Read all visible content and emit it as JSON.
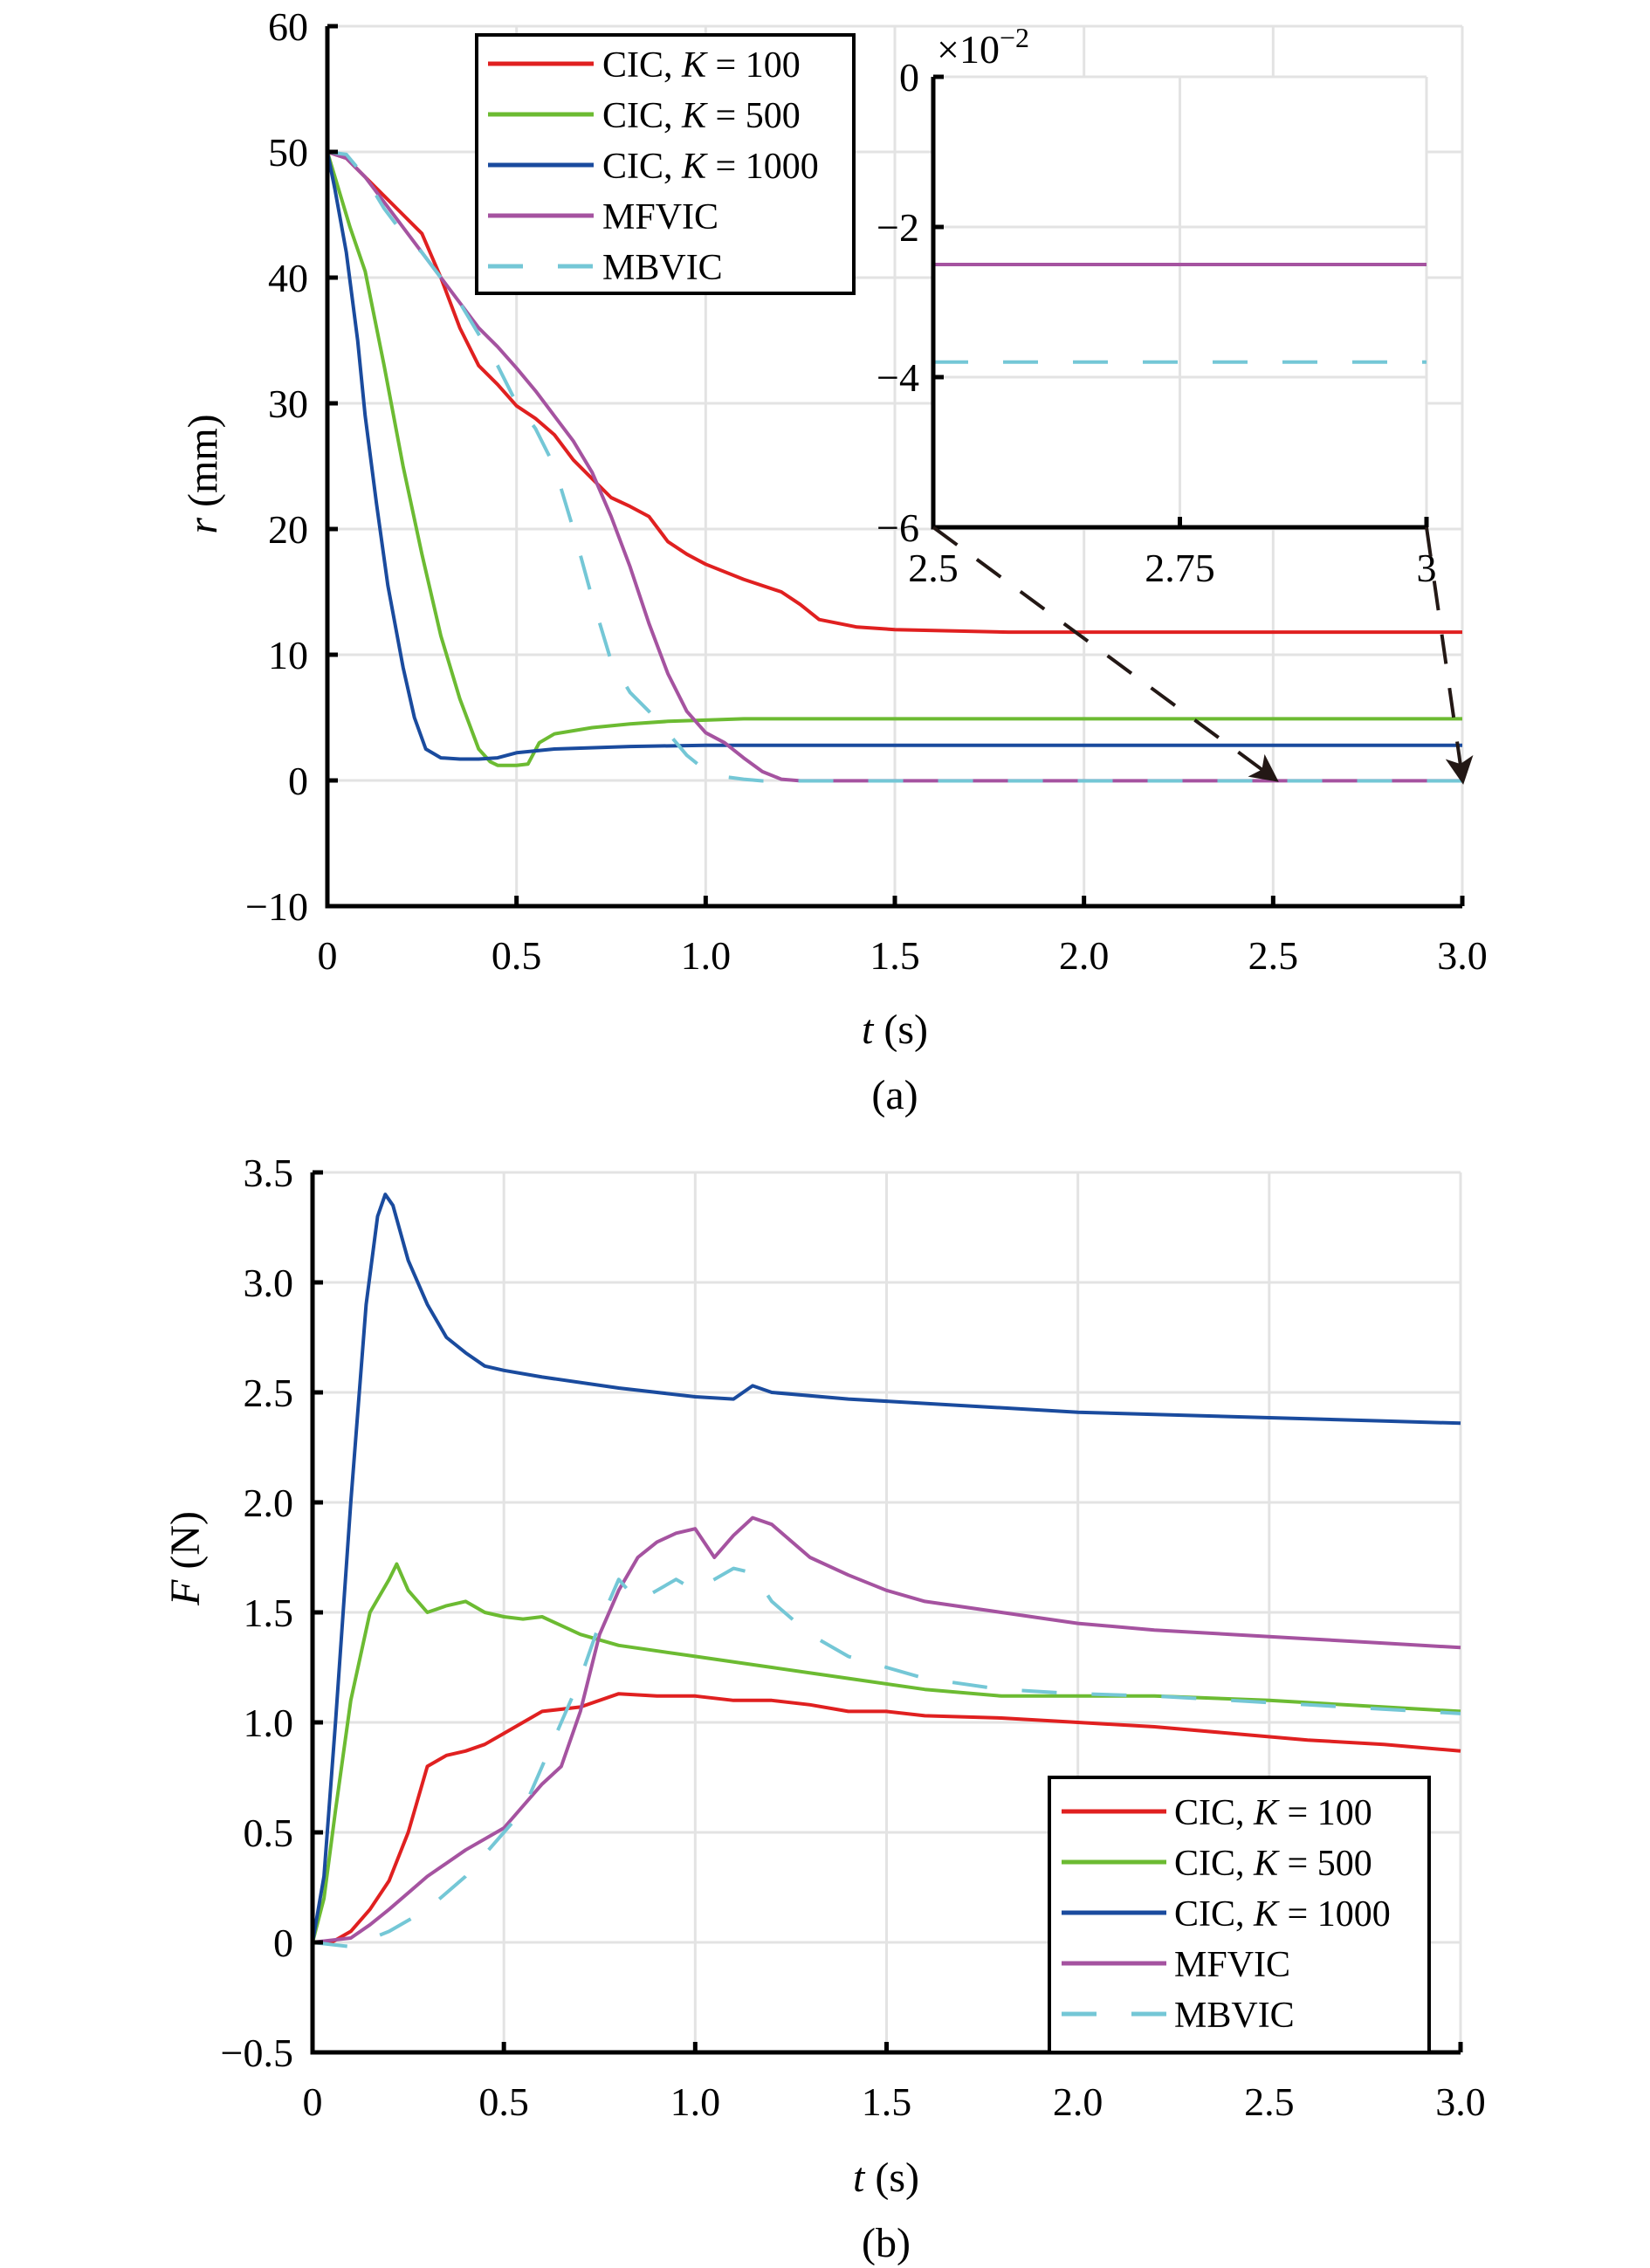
{
  "colors": {
    "cic100": "#e02020",
    "cic500": "#6cbb32",
    "cic1000": "#1a4b9e",
    "mfvic": "#a553a0",
    "mbvic": "#74c7d6",
    "grid": "#e3e3e3"
  },
  "chart_data": [
    {
      "panel": "(a)",
      "type": "line",
      "xlabel_var": "t",
      "xlabel_unit": "(s)",
      "ylabel_var": "r",
      "ylabel_unit": "(mm)",
      "xlim": [
        0,
        3.0
      ],
      "ylim": [
        -10,
        60
      ],
      "xticks": [
        0,
        0.5,
        1.0,
        1.5,
        2.0,
        2.5,
        3.0
      ],
      "xtick_labels": [
        "0",
        "0.5",
        "1.0",
        "1.5",
        "2.0",
        "2.5",
        "3.0"
      ],
      "yticks": [
        -10,
        0,
        10,
        20,
        30,
        40,
        50,
        60
      ],
      "ytick_labels": [
        "−10",
        "0",
        "10",
        "20",
        "30",
        "40",
        "50",
        "60"
      ],
      "grid": true,
      "legend_position": "top-left",
      "series": [
        {
          "name": "CIC, K = 100",
          "label_prefix": "CIC, ",
          "label_k": "K",
          "label_value": " = 100",
          "color_key": "cic100",
          "dash": false,
          "x": [
            0,
            0.05,
            0.1,
            0.15,
            0.2,
            0.25,
            0.3,
            0.35,
            0.4,
            0.45,
            0.5,
            0.55,
            0.6,
            0.65,
            0.7,
            0.75,
            0.8,
            0.85,
            0.9,
            0.95,
            1.0,
            1.1,
            1.2,
            1.25,
            1.3,
            1.4,
            1.5,
            1.8,
            2.0,
            2.5,
            3.0
          ],
          "y": [
            50,
            49.5,
            48,
            46.5,
            45,
            43.5,
            40,
            36,
            33,
            31.5,
            29.8,
            28.8,
            27.5,
            25.5,
            24,
            22.5,
            21.8,
            21,
            19,
            18,
            17.2,
            16,
            15,
            14,
            12.8,
            12.2,
            12,
            11.8,
            11.8,
            11.8,
            11.8
          ]
        },
        {
          "name": "CIC, K = 500",
          "label_prefix": "CIC, ",
          "label_k": "K",
          "label_value": " = 500",
          "color_key": "cic500",
          "dash": false,
          "x": [
            0,
            0.03,
            0.06,
            0.1,
            0.15,
            0.2,
            0.25,
            0.3,
            0.35,
            0.4,
            0.43,
            0.45,
            0.5,
            0.53,
            0.56,
            0.6,
            0.7,
            0.8,
            0.9,
            1.0,
            1.1,
            1.5,
            2.0,
            2.5,
            3.0
          ],
          "y": [
            50,
            47,
            44,
            40.5,
            33,
            25,
            18,
            11.5,
            6.5,
            2.5,
            1.5,
            1.2,
            1.2,
            1.3,
            3,
            3.7,
            4.2,
            4.5,
            4.7,
            4.8,
            4.9,
            4.9,
            4.9,
            4.9,
            4.9
          ]
        },
        {
          "name": "CIC, K = 1000",
          "label_prefix": "CIC, ",
          "label_k": "K",
          "label_value": " = 1000",
          "color_key": "cic1000",
          "dash": false,
          "x": [
            0,
            0.02,
            0.05,
            0.08,
            0.1,
            0.13,
            0.16,
            0.2,
            0.23,
            0.26,
            0.3,
            0.35,
            0.4,
            0.45,
            0.5,
            0.6,
            0.8,
            1.0,
            1.5,
            2.0,
            2.5,
            3.0
          ],
          "y": [
            50,
            47,
            42,
            35,
            29,
            22,
            15.5,
            9,
            5,
            2.5,
            1.8,
            1.7,
            1.7,
            1.8,
            2.2,
            2.5,
            2.7,
            2.8,
            2.8,
            2.8,
            2.8,
            2.8
          ]
        },
        {
          "name": "MFVIC",
          "label_prefix": "MFVIC",
          "label_k": "",
          "label_value": "",
          "color_key": "mfvic",
          "dash": false,
          "x": [
            0,
            0.05,
            0.1,
            0.15,
            0.2,
            0.25,
            0.3,
            0.35,
            0.4,
            0.45,
            0.5,
            0.55,
            0.6,
            0.65,
            0.7,
            0.75,
            0.8,
            0.85,
            0.9,
            0.95,
            1.0,
            1.05,
            1.1,
            1.15,
            1.2,
            1.25,
            1.5,
            2.0,
            2.5,
            3.0
          ],
          "y": [
            50,
            49.5,
            48,
            46,
            44,
            42,
            40,
            38,
            36,
            34.5,
            32.8,
            31,
            29,
            27,
            24.5,
            21,
            17,
            12.5,
            8.5,
            5.5,
            3.8,
            3,
            1.8,
            0.7,
            0.1,
            -0.025,
            -0.025,
            -0.025,
            -0.025,
            -0.025
          ]
        },
        {
          "name": "MBVIC",
          "label_prefix": "MBVIC",
          "label_k": "",
          "label_value": "",
          "color_key": "mbvic",
          "dash": true,
          "x": [
            0,
            0.05,
            0.1,
            0.15,
            0.2,
            0.25,
            0.3,
            0.35,
            0.4,
            0.45,
            0.5,
            0.55,
            0.6,
            0.65,
            0.7,
            0.75,
            0.8,
            0.85,
            0.9,
            0.95,
            1.0,
            1.05,
            1.1,
            1.15,
            1.2,
            1.5,
            2.0,
            2.5,
            3.0
          ],
          "y": [
            50,
            49.8,
            48,
            45.5,
            43.5,
            42,
            40,
            38,
            35.5,
            33,
            30,
            28,
            25,
            20,
            14.5,
            9.5,
            7,
            5.5,
            3.8,
            2,
            0.8,
            0.3,
            0.1,
            -0.038,
            -0.038,
            -0.038,
            -0.038,
            -0.038,
            -0.038
          ]
        }
      ],
      "inset": {
        "xlim": [
          2.5,
          3.0
        ],
        "ylim": [
          -6,
          0
        ],
        "xticks": [
          2.5,
          2.75,
          3.0
        ],
        "xtick_labels": [
          "2.5",
          "2.75",
          "3"
        ],
        "yticks": [
          -6,
          -4,
          -2,
          0
        ],
        "ytick_labels": [
          "−6",
          "−4",
          "−2",
          "0"
        ],
        "scale_label_base": "×10",
        "scale_label_exp": "−2",
        "series": [
          {
            "name": "MFVIC",
            "color_key": "mfvic",
            "dash": false,
            "x": [
              2.5,
              3.0
            ],
            "y": [
              -2.5,
              -2.5
            ]
          },
          {
            "name": "MBVIC",
            "color_key": "mbvic",
            "dash": true,
            "x": [
              2.5,
              3.0
            ],
            "y": [
              -3.8,
              -3.8
            ]
          }
        ],
        "zoom_targets": [
          2.5,
          3.0
        ]
      }
    },
    {
      "panel": "(b)",
      "type": "line",
      "xlabel_var": "t",
      "xlabel_unit": "(s)",
      "ylabel_var": "F",
      "ylabel_unit": "(N)",
      "xlim": [
        0,
        3.0
      ],
      "ylim": [
        -0.5,
        3.5
      ],
      "xticks": [
        0,
        0.5,
        1.0,
        1.5,
        2.0,
        2.5,
        3.0
      ],
      "xtick_labels": [
        "0",
        "0.5",
        "1.0",
        "1.5",
        "2.0",
        "2.5",
        "3.0"
      ],
      "yticks": [
        -0.5,
        0,
        0.5,
        1.0,
        1.5,
        2.0,
        2.5,
        3.0,
        3.5
      ],
      "ytick_labels": [
        "−0.5",
        "0",
        "0.5",
        "1.0",
        "1.5",
        "2.0",
        "2.5",
        "3.0",
        "3.5"
      ],
      "grid": true,
      "legend_position": "bottom-right",
      "series": [
        {
          "name": "CIC, K = 100",
          "label_prefix": "CIC, ",
          "label_k": "K",
          "label_value": " = 100",
          "color_key": "cic100",
          "dash": false,
          "x": [
            0,
            0.05,
            0.1,
            0.15,
            0.2,
            0.25,
            0.3,
            0.35,
            0.4,
            0.45,
            0.5,
            0.55,
            0.6,
            0.7,
            0.8,
            0.9,
            1.0,
            1.1,
            1.2,
            1.3,
            1.4,
            1.5,
            1.6,
            1.8,
            2.0,
            2.2,
            2.4,
            2.6,
            2.8,
            3.0
          ],
          "y": [
            0,
            0,
            0.05,
            0.15,
            0.28,
            0.5,
            0.8,
            0.85,
            0.87,
            0.9,
            0.95,
            1.0,
            1.05,
            1.07,
            1.13,
            1.12,
            1.12,
            1.1,
            1.1,
            1.08,
            1.05,
            1.05,
            1.03,
            1.02,
            1.0,
            0.98,
            0.95,
            0.92,
            0.9,
            0.87
          ]
        },
        {
          "name": "CIC, K = 500",
          "label_prefix": "CIC, ",
          "label_k": "K",
          "label_value": " = 500",
          "color_key": "cic500",
          "dash": false,
          "x": [
            0,
            0.03,
            0.06,
            0.1,
            0.15,
            0.2,
            0.22,
            0.25,
            0.3,
            0.35,
            0.4,
            0.45,
            0.5,
            0.55,
            0.6,
            0.7,
            0.8,
            1.0,
            1.2,
            1.4,
            1.6,
            1.8,
            2.0,
            2.2,
            2.5,
            2.8,
            3.0
          ],
          "y": [
            0,
            0.2,
            0.6,
            1.1,
            1.5,
            1.65,
            1.72,
            1.6,
            1.5,
            1.53,
            1.55,
            1.5,
            1.48,
            1.47,
            1.48,
            1.4,
            1.35,
            1.3,
            1.25,
            1.2,
            1.15,
            1.12,
            1.12,
            1.12,
            1.1,
            1.07,
            1.05
          ]
        },
        {
          "name": "CIC, K = 1000",
          "label_prefix": "CIC, ",
          "label_k": "K",
          "label_value": " = 1000",
          "color_key": "cic1000",
          "dash": false,
          "x": [
            0,
            0.03,
            0.06,
            0.1,
            0.14,
            0.17,
            0.19,
            0.21,
            0.25,
            0.3,
            0.35,
            0.4,
            0.45,
            0.5,
            0.6,
            0.8,
            1.0,
            1.1,
            1.15,
            1.2,
            1.4,
            1.6,
            2.0,
            2.4,
            2.8,
            3.0
          ],
          "y": [
            0,
            0.3,
            1.0,
            2.0,
            2.9,
            3.3,
            3.4,
            3.35,
            3.1,
            2.9,
            2.75,
            2.68,
            2.62,
            2.6,
            2.57,
            2.52,
            2.48,
            2.47,
            2.53,
            2.5,
            2.47,
            2.45,
            2.41,
            2.39,
            2.37,
            2.36
          ]
        },
        {
          "name": "MFVIC",
          "label_prefix": "MFVIC",
          "label_k": "",
          "label_value": "",
          "color_key": "mfvic",
          "dash": false,
          "x": [
            0,
            0.1,
            0.15,
            0.2,
            0.3,
            0.4,
            0.5,
            0.6,
            0.65,
            0.7,
            0.75,
            0.8,
            0.85,
            0.9,
            0.95,
            1.0,
            1.05,
            1.1,
            1.15,
            1.2,
            1.3,
            1.4,
            1.5,
            1.6,
            1.8,
            2.0,
            2.2,
            2.4,
            2.6,
            2.8,
            3.0
          ],
          "y": [
            0,
            0.02,
            0.08,
            0.15,
            0.3,
            0.42,
            0.52,
            0.72,
            0.8,
            1.05,
            1.4,
            1.6,
            1.75,
            1.82,
            1.86,
            1.88,
            1.75,
            1.85,
            1.93,
            1.9,
            1.75,
            1.67,
            1.6,
            1.55,
            1.5,
            1.45,
            1.42,
            1.4,
            1.38,
            1.36,
            1.34
          ]
        },
        {
          "name": "MBVIC",
          "label_prefix": "MBVIC",
          "label_k": "",
          "label_value": "",
          "color_key": "mbvic",
          "dash": true,
          "x": [
            0,
            0.1,
            0.2,
            0.3,
            0.4,
            0.5,
            0.55,
            0.6,
            0.65,
            0.7,
            0.75,
            0.8,
            0.85,
            0.9,
            0.95,
            1.0,
            1.05,
            1.1,
            1.15,
            1.2,
            1.3,
            1.4,
            1.6,
            1.8,
            2.0,
            2.2,
            2.4,
            2.6,
            2.8,
            3.0
          ],
          "y": [
            0,
            -0.02,
            0.05,
            0.15,
            0.3,
            0.5,
            0.6,
            0.8,
            1.0,
            1.2,
            1.45,
            1.65,
            1.55,
            1.6,
            1.65,
            1.6,
            1.65,
            1.7,
            1.68,
            1.55,
            1.4,
            1.3,
            1.2,
            1.15,
            1.13,
            1.12,
            1.1,
            1.08,
            1.06,
            1.04
          ]
        }
      ]
    }
  ]
}
